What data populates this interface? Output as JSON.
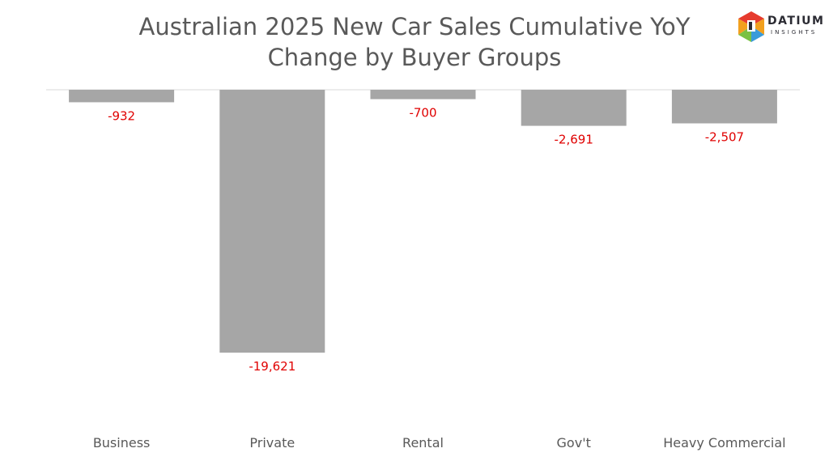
{
  "title_lines": [
    "Australian 2025 New Car Sales Cumulative YoY",
    "Change by Buyer Groups"
  ],
  "logo": {
    "word": "DATIUM",
    "sub": "INSIGHTS",
    "colors": [
      "#e63b2e",
      "#f2a01e",
      "#3a9bd9",
      "#7ac143",
      "#2b2b33"
    ]
  },
  "colors": {
    "bar": "#a6a6a6",
    "data_label": "#e00000",
    "category_label": "#595959",
    "axis": "#d9d9d9"
  },
  "chart_data": {
    "type": "bar",
    "categories": [
      "Business",
      "Private",
      "Rental",
      "Gov't",
      "Heavy Commercial"
    ],
    "values": [
      -932,
      -19621,
      -700,
      -2691,
      -2507
    ],
    "data_labels": [
      "-932",
      "-19,621",
      "-700",
      "-2,691",
      "-2,507"
    ],
    "title": "Australian 2025 New Car Sales Cumulative YoY Change by Buyer Groups",
    "xlabel": "",
    "ylabel": "",
    "ylim": [
      -19621,
      0
    ],
    "grid": false,
    "legend": "none"
  }
}
